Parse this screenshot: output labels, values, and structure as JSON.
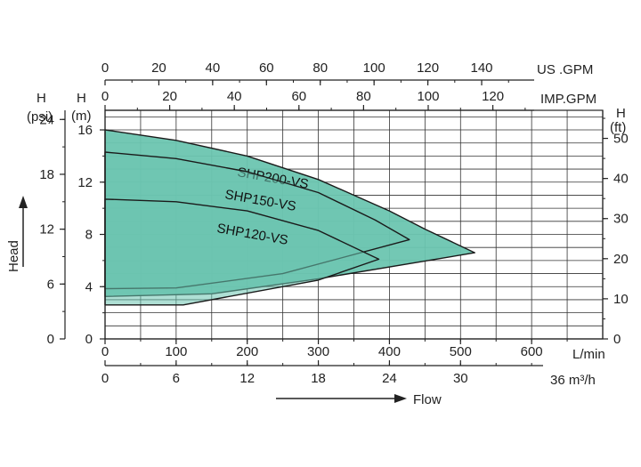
{
  "chart_data": {
    "type": "area",
    "title": "",
    "axes": {
      "flow_lmin": {
        "label": "L/min",
        "range": [
          0,
          700
        ],
        "ticks": [
          0,
          100,
          200,
          300,
          400,
          500,
          600
        ]
      },
      "flow_m3h": {
        "label": "36 m³/h",
        "range": [
          0,
          42
        ],
        "ticks": [
          0,
          6,
          12,
          18,
          24,
          30
        ]
      },
      "flow_usgpm": {
        "label": "US .GPM",
        "range": [
          0,
          185
        ],
        "ticks": [
          0,
          20,
          40,
          60,
          80,
          100,
          120,
          140
        ]
      },
      "flow_impgpm": {
        "label": "IMP.GPM",
        "range": [
          0,
          154
        ],
        "ticks": [
          0,
          20,
          40,
          60,
          80,
          100,
          120
        ]
      },
      "head_m": {
        "label_top": "H",
        "label_unit": "(m)",
        "range": [
          0,
          17.5
        ],
        "ticks": [
          0,
          4,
          8,
          12,
          16
        ]
      },
      "head_psi": {
        "label_top": "H",
        "label_unit": "(psi)",
        "range": [
          0,
          25
        ],
        "ticks": [
          0,
          6,
          12,
          18,
          24
        ]
      },
      "head_ft": {
        "label_top": "H",
        "label_unit": "(ft)",
        "range": [
          0,
          57
        ],
        "ticks": [
          0,
          10,
          20,
          30,
          40,
          50
        ]
      }
    },
    "flow_label": "Flow",
    "head_label": "Head",
    "grid": true,
    "series": [
      {
        "name": "SHP200-VS",
        "color": "#6cc5b0",
        "points": [
          [
            0,
            16
          ],
          [
            100,
            15.2
          ],
          [
            200,
            14
          ],
          [
            300,
            12.2
          ],
          [
            400,
            9.8
          ],
          [
            450,
            8.4
          ],
          [
            520,
            6.6
          ],
          [
            300,
            4.6
          ],
          [
            150,
            3.45
          ],
          [
            0,
            3.25
          ]
        ]
      },
      {
        "name": "SHP150-VS",
        "color": "#6cc5b0",
        "points": [
          [
            0,
            14.3
          ],
          [
            100,
            13.8
          ],
          [
            200,
            12.8
          ],
          [
            300,
            11.2
          ],
          [
            380,
            9.1
          ],
          [
            428,
            7.6
          ],
          [
            250,
            5
          ],
          [
            100,
            3.9
          ],
          [
            0,
            3.85
          ]
        ]
      },
      {
        "name": "SHP120-VS",
        "color": "#6cc5b0",
        "points": [
          [
            0,
            10.7
          ],
          [
            100,
            10.5
          ],
          [
            200,
            9.8
          ],
          [
            300,
            8.3
          ],
          [
            385,
            6.1
          ],
          [
            300,
            4.5
          ],
          [
            110,
            2.6
          ],
          [
            0,
            2.6
          ]
        ]
      }
    ]
  }
}
